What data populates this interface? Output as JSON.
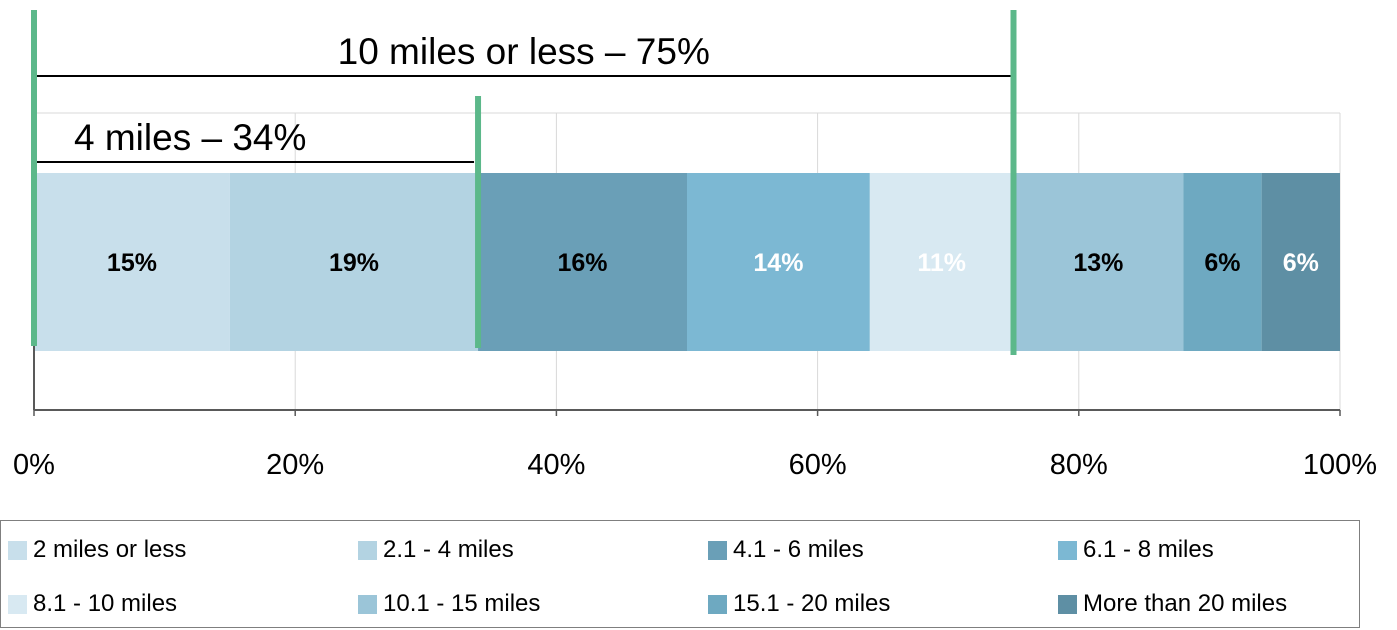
{
  "chart_data": {
    "type": "bar",
    "orientation": "horizontal",
    "stacked": "percent",
    "categories": [
      ""
    ],
    "series": [
      {
        "name": "2 miles or less",
        "values": [
          15
        ],
        "label": "15%",
        "color": "#c8dfeb",
        "label_color": "#000000"
      },
      {
        "name": "2.1 - 4 miles",
        "values": [
          19
        ],
        "label": "19%",
        "color": "#b3d3e2",
        "label_color": "#000000"
      },
      {
        "name": "4.1 - 6 miles",
        "values": [
          16
        ],
        "label": "16%",
        "color": "#6a9fb7",
        "label_color": "#000000"
      },
      {
        "name": "6.1 - 8 miles",
        "values": [
          14
        ],
        "label": "14%",
        "color": "#7cb8d3",
        "label_color": "#ffffff"
      },
      {
        "name": "8.1 - 10 miles",
        "values": [
          11
        ],
        "label": "11%",
        "color": "#d8e9f2",
        "label_color": "#ffffff"
      },
      {
        "name": "10.1 - 15 miles",
        "values": [
          13
        ],
        "label": "13%",
        "color": "#9bc5d8",
        "label_color": "#000000"
      },
      {
        "name": "15.1 - 20 miles",
        "values": [
          6
        ],
        "label": "6%",
        "color": "#6ea9c1",
        "label_color": "#000000"
      },
      {
        "name": "More than 20 miles",
        "values": [
          6
        ],
        "label": "6%",
        "color": "#5e8fa4",
        "label_color": "#ffffff"
      }
    ],
    "xlim": [
      0,
      100
    ],
    "x_ticks": [
      "0%",
      "20%",
      "40%",
      "60%",
      "80%",
      "100%"
    ],
    "grid": true,
    "legend_position": "bottom",
    "annotations": [
      {
        "text": "10 miles or less – 75%",
        "from": 0,
        "to": 75
      },
      {
        "text": "4 miles – 34%",
        "from": 0,
        "to": 34
      }
    ],
    "marker_color": "#5cb88a"
  }
}
